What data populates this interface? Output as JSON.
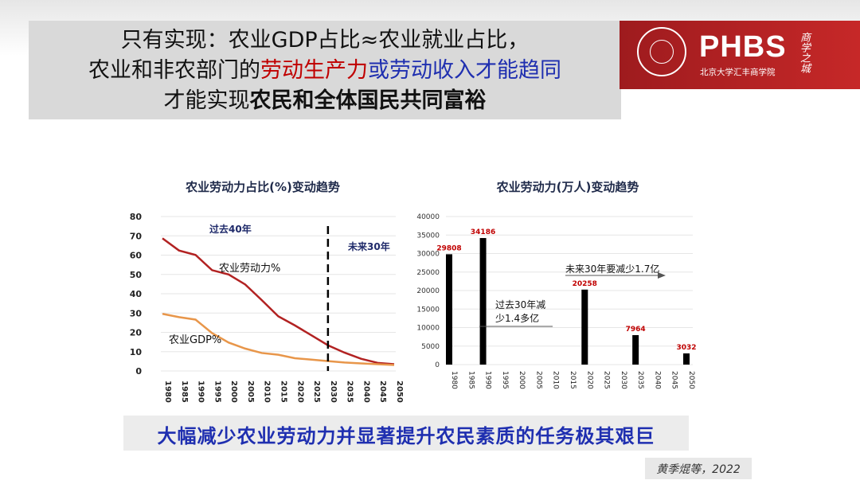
{
  "header": {
    "line1": "只有实现：农业GDP占比≈农业就业占比，",
    "line2_a": "农业和非农部门的",
    "line2_b": "劳动生产力",
    "line2_c": "或劳动收入才能趋同",
    "line3_a": "才能实现",
    "line3_b": "农民和全体国民共同富裕"
  },
  "logo": {
    "brand": "PHBS",
    "subtitle": "北京大学汇丰商学院",
    "calligraphy": "商学之城"
  },
  "bottom_banner": "大幅减少农业劳动力并显著提升农民素质的任务极其艰巨",
  "citation": "黄季焜等，2022",
  "colors": {
    "red": "#c00000",
    "blue": "#1f2fb0",
    "labor_line": "#b22222",
    "gdp_line": "#e8964a",
    "bar": "#000000"
  },
  "chart_data": [
    {
      "type": "line",
      "title": "农业劳动力占比(%)变动趋势",
      "x": [
        "1980",
        "1985",
        "1990",
        "1995",
        "2000",
        "2005",
        "2010",
        "2015",
        "2020",
        "2025",
        "2030",
        "2035",
        "2040",
        "2045",
        "2050"
      ],
      "ylim": [
        0,
        80
      ],
      "yticks": [
        0,
        10,
        20,
        30,
        40,
        50,
        60,
        70,
        80
      ],
      "series": [
        {
          "name": "农业劳动力%",
          "values": [
            68.7,
            62.4,
            60.1,
            52.2,
            50.0,
            44.8,
            36.7,
            28.3,
            23.6,
            18.5,
            13.3,
            9.5,
            6.3,
            4.2,
            3.5
          ]
        },
        {
          "name": "农业GDP%",
          "values": [
            29.6,
            27.9,
            26.6,
            19.6,
            14.7,
            11.6,
            9.3,
            8.4,
            6.6,
            5.9,
            5.1,
            4.4,
            3.9,
            3.5,
            3.1
          ]
        }
      ],
      "divider_at": "2030",
      "annotations": {
        "past": "过去40年",
        "future": "未来30年"
      }
    },
    {
      "type": "bar",
      "title": "农业劳动力(万人)变动趋势",
      "categories": [
        "1980",
        "1985",
        "1990",
        "1995",
        "2000",
        "2005",
        "2010",
        "2015",
        "2020",
        "2025",
        "2030",
        "2035",
        "2040",
        "2045",
        "2050"
      ],
      "values": [
        29808,
        null,
        34186,
        null,
        null,
        null,
        null,
        null,
        20258,
        null,
        null,
        7964,
        null,
        null,
        3032
      ],
      "ylim": [
        0,
        40000
      ],
      "yticks": [
        0,
        5000,
        10000,
        15000,
        20000,
        25000,
        30000,
        35000,
        40000
      ],
      "annotations": {
        "past_line1": "过去30年减",
        "past_line2": "少1.4多亿",
        "future": "未来30年要减少1.7亿"
      }
    }
  ]
}
